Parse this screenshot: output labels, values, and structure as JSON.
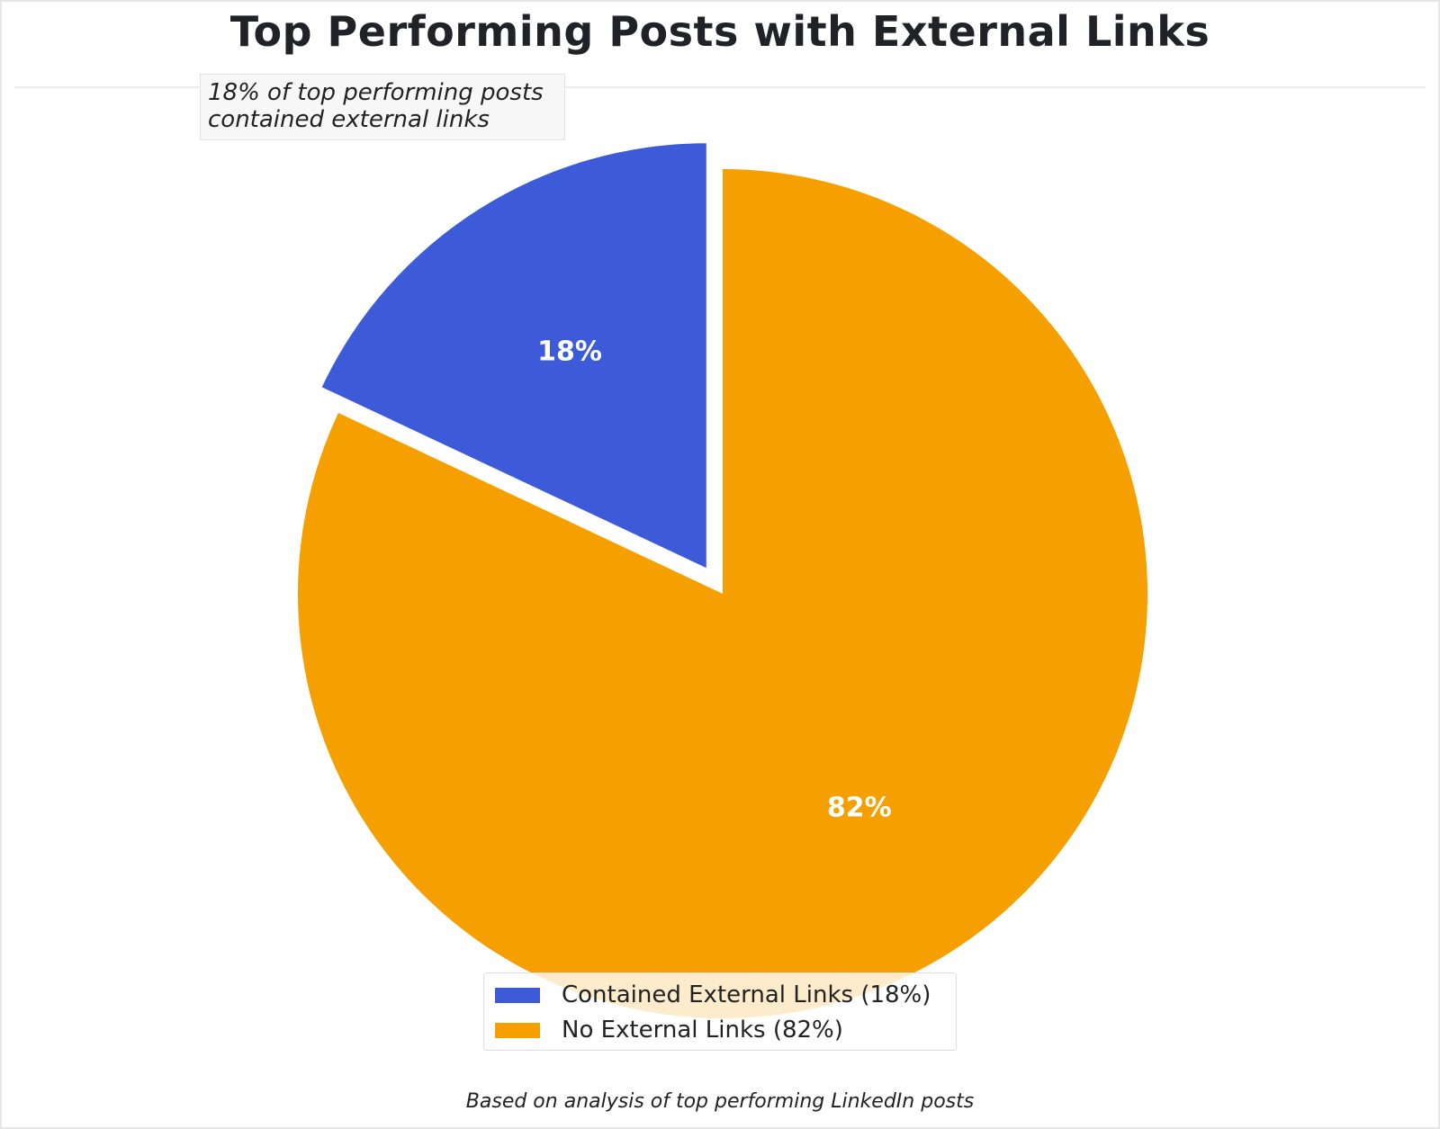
{
  "chart_data": {
    "type": "pie",
    "title": "Top Performing Posts with External Links",
    "annotation": [
      "18% of top performing posts",
      "contained external links"
    ],
    "categories": [
      "Contained External Links",
      "No External Links"
    ],
    "values": [
      18,
      82
    ],
    "slice_labels": [
      "18%",
      "82%"
    ],
    "legend_labels": [
      "Contained External Links (18%)",
      "No External Links (82%)"
    ],
    "colors": [
      "#3d5bd9",
      "#f5a000"
    ],
    "exploded": [
      "Contained External Links"
    ],
    "legend_position": "bottom-center",
    "footnote": "Based on analysis of top performing LinkedIn posts"
  }
}
